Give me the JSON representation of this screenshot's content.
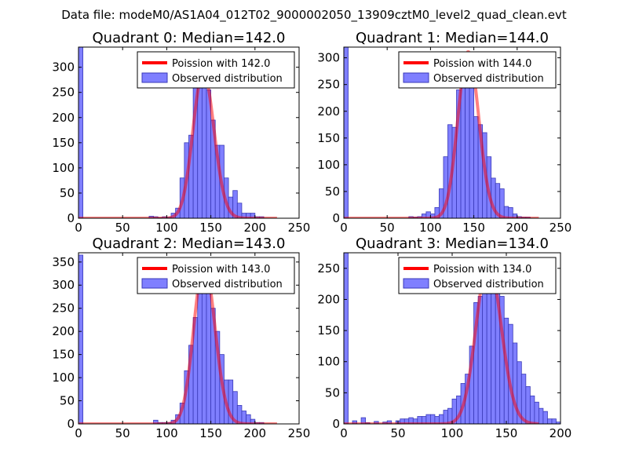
{
  "suptitle": "Data file: modeM0/AS1A04_012T02_9000002050_13909cztM0_level2_quad_clean.evt",
  "colors": {
    "poisson_line": "#ff0000",
    "bar_fill": "#7f7fff",
    "bar_edge": "#3a3ab8",
    "legend_border": "#000000"
  },
  "chart_data": [
    {
      "type": "bar",
      "title": "Quadrant 0: Median=142.0",
      "median": 142.0,
      "legend": [
        "Poission with 142.0",
        "Observed distribution"
      ],
      "xlim": [
        0,
        250
      ],
      "ylim": [
        0,
        340
      ],
      "xticks": [
        0,
        50,
        100,
        150,
        200,
        250
      ],
      "yticks": [
        0,
        50,
        100,
        150,
        200,
        250,
        300
      ],
      "bin_width": 5,
      "bins": [
        {
          "x": 0,
          "y": 340
        },
        {
          "x": 80,
          "y": 4
        },
        {
          "x": 85,
          "y": 3
        },
        {
          "x": 90,
          "y": 1
        },
        {
          "x": 95,
          "y": 3
        },
        {
          "x": 100,
          "y": 2
        },
        {
          "x": 105,
          "y": 10
        },
        {
          "x": 110,
          "y": 20
        },
        {
          "x": 115,
          "y": 80
        },
        {
          "x": 120,
          "y": 150
        },
        {
          "x": 125,
          "y": 165
        },
        {
          "x": 130,
          "y": 285
        },
        {
          "x": 135,
          "y": 270
        },
        {
          "x": 140,
          "y": 260
        },
        {
          "x": 145,
          "y": 255
        },
        {
          "x": 150,
          "y": 195
        },
        {
          "x": 155,
          "y": 145
        },
        {
          "x": 160,
          "y": 145
        },
        {
          "x": 165,
          "y": 80
        },
        {
          "x": 170,
          "y": 42
        },
        {
          "x": 175,
          "y": 55
        },
        {
          "x": 180,
          "y": 30
        },
        {
          "x": 185,
          "y": 10
        },
        {
          "x": 190,
          "y": 10
        },
        {
          "x": 195,
          "y": 10
        },
        {
          "x": 200,
          "y": 3
        },
        {
          "x": 205,
          "y": 3
        }
      ]
    },
    {
      "type": "bar",
      "title": "Quadrant 1: Median=144.0",
      "median": 144.0,
      "legend": [
        "Poission with 144.0",
        "Observed distribution"
      ],
      "xlim": [
        0,
        250
      ],
      "ylim": [
        0,
        320
      ],
      "xticks": [
        0,
        50,
        100,
        150,
        200,
        250
      ],
      "yticks": [
        0,
        50,
        100,
        150,
        200,
        250,
        300
      ],
      "bin_width": 5,
      "bins": [
        {
          "x": 0,
          "y": 320
        },
        {
          "x": 75,
          "y": 3
        },
        {
          "x": 80,
          "y": 2
        },
        {
          "x": 85,
          "y": 3
        },
        {
          "x": 90,
          "y": 8
        },
        {
          "x": 95,
          "y": 12
        },
        {
          "x": 100,
          "y": 8
        },
        {
          "x": 105,
          "y": 20
        },
        {
          "x": 110,
          "y": 55
        },
        {
          "x": 115,
          "y": 115
        },
        {
          "x": 120,
          "y": 175
        },
        {
          "x": 125,
          "y": 170
        },
        {
          "x": 130,
          "y": 240
        },
        {
          "x": 135,
          "y": 305
        },
        {
          "x": 140,
          "y": 245
        },
        {
          "x": 145,
          "y": 305
        },
        {
          "x": 150,
          "y": 190
        },
        {
          "x": 155,
          "y": 175
        },
        {
          "x": 160,
          "y": 160
        },
        {
          "x": 165,
          "y": 115
        },
        {
          "x": 170,
          "y": 75
        },
        {
          "x": 175,
          "y": 65
        },
        {
          "x": 180,
          "y": 55
        },
        {
          "x": 185,
          "y": 22
        },
        {
          "x": 190,
          "y": 20
        },
        {
          "x": 195,
          "y": 8
        },
        {
          "x": 200,
          "y": 3
        },
        {
          "x": 205,
          "y": 2
        },
        {
          "x": 210,
          "y": 2
        }
      ]
    },
    {
      "type": "bar",
      "title": "Quadrant 2: Median=143.0",
      "median": 143.0,
      "legend": [
        "Poission with 143.0",
        "Observed distribution"
      ],
      "xlim": [
        0,
        250
      ],
      "ylim": [
        0,
        370
      ],
      "xticks": [
        0,
        50,
        100,
        150,
        200,
        250
      ],
      "yticks": [
        0,
        50,
        100,
        150,
        200,
        250,
        300,
        350
      ],
      "bin_width": 5,
      "bins": [
        {
          "x": 0,
          "y": 365
        },
        {
          "x": 85,
          "y": 8
        },
        {
          "x": 90,
          "y": 3
        },
        {
          "x": 95,
          "y": 3
        },
        {
          "x": 100,
          "y": 3
        },
        {
          "x": 105,
          "y": 8
        },
        {
          "x": 110,
          "y": 20
        },
        {
          "x": 115,
          "y": 45
        },
        {
          "x": 120,
          "y": 115
        },
        {
          "x": 125,
          "y": 170
        },
        {
          "x": 130,
          "y": 230
        },
        {
          "x": 135,
          "y": 310
        },
        {
          "x": 140,
          "y": 340
        },
        {
          "x": 145,
          "y": 305
        },
        {
          "x": 150,
          "y": 250
        },
        {
          "x": 155,
          "y": 200
        },
        {
          "x": 160,
          "y": 150
        },
        {
          "x": 165,
          "y": 95
        },
        {
          "x": 170,
          "y": 95
        },
        {
          "x": 175,
          "y": 70
        },
        {
          "x": 180,
          "y": 40
        },
        {
          "x": 185,
          "y": 28
        },
        {
          "x": 190,
          "y": 20
        },
        {
          "x": 195,
          "y": 10
        },
        {
          "x": 200,
          "y": 3
        },
        {
          "x": 205,
          "y": 3
        }
      ]
    },
    {
      "type": "bar",
      "title": "Quadrant 3: Median=134.0",
      "median": 134.0,
      "legend": [
        "Poission with 134.0",
        "Observed distribution"
      ],
      "xlim": [
        0,
        200
      ],
      "ylim": [
        0,
        275
      ],
      "xticks": [
        0,
        50,
        100,
        150,
        200
      ],
      "yticks": [
        0,
        50,
        100,
        150,
        200,
        250
      ],
      "bin_width": 4,
      "bins": [
        {
          "x": 0,
          "y": 275
        },
        {
          "x": 8,
          "y": 5
        },
        {
          "x": 16,
          "y": 10
        },
        {
          "x": 20,
          "y": 2
        },
        {
          "x": 28,
          "y": 4
        },
        {
          "x": 36,
          "y": 3
        },
        {
          "x": 40,
          "y": 5
        },
        {
          "x": 48,
          "y": 5
        },
        {
          "x": 52,
          "y": 8
        },
        {
          "x": 56,
          "y": 8
        },
        {
          "x": 60,
          "y": 10
        },
        {
          "x": 64,
          "y": 8
        },
        {
          "x": 68,
          "y": 12
        },
        {
          "x": 72,
          "y": 12
        },
        {
          "x": 76,
          "y": 15
        },
        {
          "x": 80,
          "y": 15
        },
        {
          "x": 84,
          "y": 12
        },
        {
          "x": 88,
          "y": 15
        },
        {
          "x": 92,
          "y": 22
        },
        {
          "x": 96,
          "y": 25
        },
        {
          "x": 100,
          "y": 40
        },
        {
          "x": 104,
          "y": 45
        },
        {
          "x": 108,
          "y": 65
        },
        {
          "x": 112,
          "y": 80
        },
        {
          "x": 116,
          "y": 125
        },
        {
          "x": 120,
          "y": 195
        },
        {
          "x": 124,
          "y": 205
        },
        {
          "x": 128,
          "y": 220
        },
        {
          "x": 132,
          "y": 255
        },
        {
          "x": 136,
          "y": 240
        },
        {
          "x": 140,
          "y": 225
        },
        {
          "x": 144,
          "y": 205
        },
        {
          "x": 148,
          "y": 170
        },
        {
          "x": 152,
          "y": 160
        },
        {
          "x": 156,
          "y": 130
        },
        {
          "x": 160,
          "y": 100
        },
        {
          "x": 164,
          "y": 80
        },
        {
          "x": 168,
          "y": 60
        },
        {
          "x": 172,
          "y": 45
        },
        {
          "x": 176,
          "y": 35
        },
        {
          "x": 180,
          "y": 25
        },
        {
          "x": 184,
          "y": 20
        },
        {
          "x": 188,
          "y": 8
        },
        {
          "x": 192,
          "y": 8
        },
        {
          "x": 196,
          "y": 3
        }
      ]
    }
  ]
}
